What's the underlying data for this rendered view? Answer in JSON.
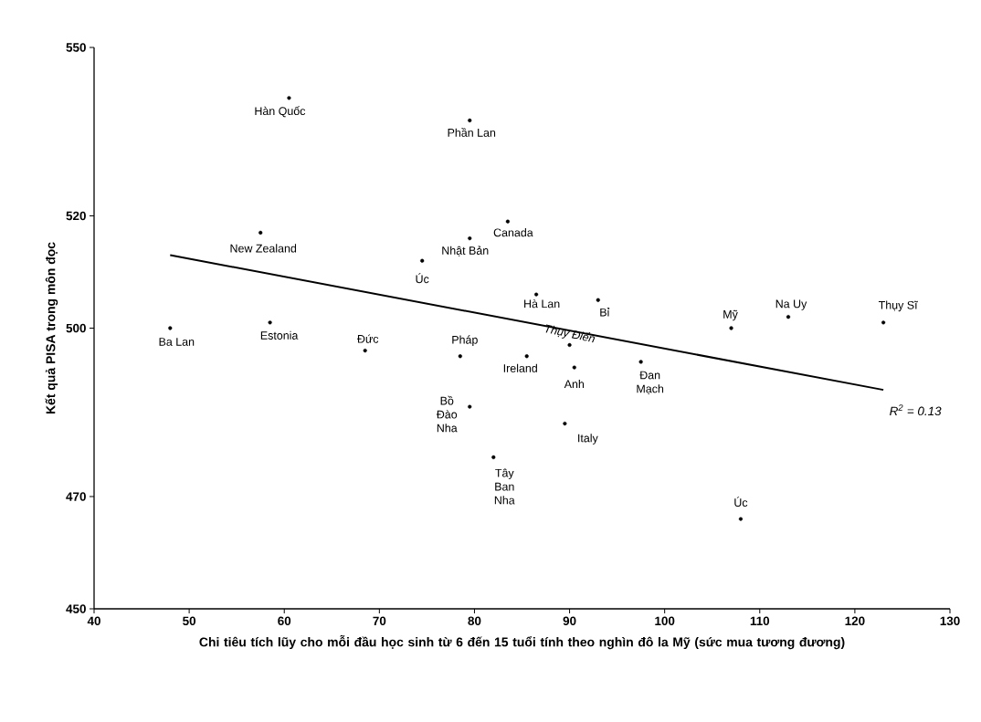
{
  "chart_data": {
    "type": "scatter",
    "xlabel": "Chi tiêu tích lũy cho mỗi đầu học sinh từ 6 đến 15 tuổi tính theo nghìn đô la Mỹ (sức mua tương đương)",
    "ylabel": "Kết quả PISA trong môn đọc",
    "xlim": [
      40,
      130
    ],
    "ylim": [
      450,
      550
    ],
    "xticks": [
      40,
      50,
      60,
      70,
      80,
      90,
      100,
      110,
      120,
      130
    ],
    "yticks": [
      450,
      470,
      500,
      520,
      550
    ],
    "marker": "circle",
    "annotations": [
      "R$^{2}$ = 0.13"
    ],
    "series": [
      {
        "name": "Hàn Quốc",
        "color": "#000000",
        "x": [
          60.5
        ],
        "values": [
          541
        ]
      },
      {
        "name": "Phần Lan",
        "color": "#000000",
        "x": [
          79.5
        ],
        "values": [
          537
        ]
      },
      {
        "name": "Canada",
        "color": "#000000",
        "x": [
          83.5
        ],
        "values": [
          519
        ]
      },
      {
        "name": "Nhật Bản",
        "color": "#000000",
        "x": [
          79.5
        ],
        "values": [
          516
        ]
      },
      {
        "name": "New Zealand",
        "color": "#000000",
        "x": [
          57.5
        ],
        "values": [
          517
        ]
      },
      {
        "name": "Úc",
        "color": "#000000",
        "x": [
          74.5
        ],
        "values": [
          512
        ]
      },
      {
        "name": "Hà Lan",
        "color": "#000000",
        "x": [
          86.5
        ],
        "values": [
          506
        ]
      },
      {
        "name": "Bỉ",
        "color": "#000000",
        "x": [
          93
        ],
        "values": [
          505
        ]
      },
      {
        "name": "Na Uy",
        "color": "#000000",
        "x": [
          113
        ],
        "values": [
          502
        ]
      },
      {
        "name": "Thụy Sĩ",
        "color": "#000000",
        "x": [
          123
        ],
        "values": [
          501
        ]
      },
      {
        "name": "Mỹ",
        "color": "#000000",
        "x": [
          107
        ],
        "values": [
          500
        ]
      },
      {
        "name": "Thụy Điển",
        "color": "#000000",
        "x": [
          90
        ],
        "values": [
          497
        ]
      },
      {
        "name": "Ireland",
        "color": "#000000",
        "x": [
          85.5
        ],
        "values": [
          495
        ]
      },
      {
        "name": "Anh",
        "color": "#000000",
        "x": [
          90.5
        ],
        "values": [
          493
        ]
      },
      {
        "name": "Đan Mạch",
        "color": "#000000",
        "x": [
          97.5
        ],
        "values": [
          494
        ]
      },
      {
        "name": "Italy",
        "color": "#000000",
        "x": [
          89.5
        ],
        "values": [
          483
        ]
      },
      {
        "name": "Úc",
        "color": "#000000",
        "x": [
          108
        ],
        "values": [
          466
        ]
      },
      {
        "name": "Ba Lan",
        "color": "#000000",
        "x": [
          48
        ],
        "values": [
          500
        ]
      },
      {
        "name": "Estonia",
        "color": "#000000",
        "x": [
          58.5
        ],
        "values": [
          501
        ]
      },
      {
        "name": "Đức",
        "color": "#000000",
        "x": [
          68.5
        ],
        "values": [
          496
        ]
      },
      {
        "name": "Pháp",
        "color": "#000000",
        "x": [
          78.5
        ],
        "values": [
          495
        ]
      },
      {
        "name": "Bồ Đào Nha",
        "color": "#000000",
        "x": [
          79.5
        ],
        "values": [
          486
        ]
      },
      {
        "name": "Tây Ban Nha",
        "color": "#000000",
        "x": [
          82
        ],
        "values": [
          477
        ]
      },
      {
        "type": "line",
        "color": "#000000",
        "marker": "none",
        "x": [
          48,
          123
        ],
        "values": [
          513,
          489
        ]
      }
    ]
  }
}
